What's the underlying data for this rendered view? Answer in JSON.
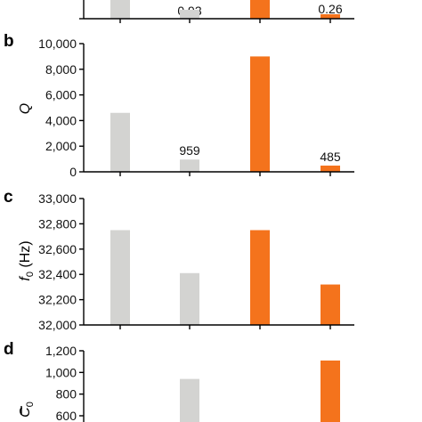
{
  "colors": {
    "control": "#d3d3d1",
    "highlight": "#f4731c"
  },
  "chart_data": [
    {
      "panel": "",
      "type": "bar",
      "partial": "bottom-cropped-top",
      "categories": [
        "",
        "",
        "",
        ""
      ],
      "values": [
        null,
        0.93,
        null,
        0.26
      ],
      "data_labels": [
        "",
        "0.93",
        "",
        "0.26"
      ],
      "colors": [
        "control",
        "control",
        "highlight",
        "highlight"
      ],
      "ylabel": "",
      "yticks": [],
      "ylim": [
        0,
        1
      ]
    },
    {
      "panel": "b",
      "type": "bar",
      "categories": [
        "",
        "",
        "",
        ""
      ],
      "values": [
        4600,
        959,
        9000,
        485
      ],
      "data_labels": [
        "",
        "959",
        "",
        "485"
      ],
      "colors": [
        "control",
        "control",
        "highlight",
        "highlight"
      ],
      "ylabel": "Q",
      "yticks": [
        "0",
        "2,000",
        "4,000",
        "6,000",
        "8,000",
        "10,000"
      ],
      "ylim": [
        0,
        10000
      ]
    },
    {
      "panel": "c",
      "type": "bar",
      "categories": [
        "",
        "",
        "",
        ""
      ],
      "values": [
        32750,
        32410,
        32750,
        32320
      ],
      "data_labels": [
        "",
        "",
        "",
        ""
      ],
      "colors": [
        "control",
        "control",
        "highlight",
        "highlight"
      ],
      "ylabel": "f0 (Hz)",
      "ylabel_main": "f",
      "ylabel_sub": "0",
      "ylabel_rest": " (Hz)",
      "yticks": [
        "32,000",
        "32,200",
        "32,400",
        "32,600",
        "32,800",
        "33,000"
      ],
      "ylim": [
        32000,
        33000
      ]
    },
    {
      "panel": "d",
      "type": "bar",
      "partial": "top-cropped-bottom",
      "categories": [
        "",
        "",
        "",
        ""
      ],
      "values": [
        null,
        940,
        null,
        1110
      ],
      "data_labels": [
        "",
        "",
        "",
        ""
      ],
      "colors": [
        "control",
        "control",
        "highlight",
        "highlight"
      ],
      "ylabel": "C0",
      "ylabel_main": "C",
      "ylabel_sub": "0",
      "ylabel_overline": true,
      "yticks": [
        "600",
        "800",
        "1,000",
        "1,200"
      ],
      "ylim": [
        600,
        1200
      ]
    }
  ]
}
